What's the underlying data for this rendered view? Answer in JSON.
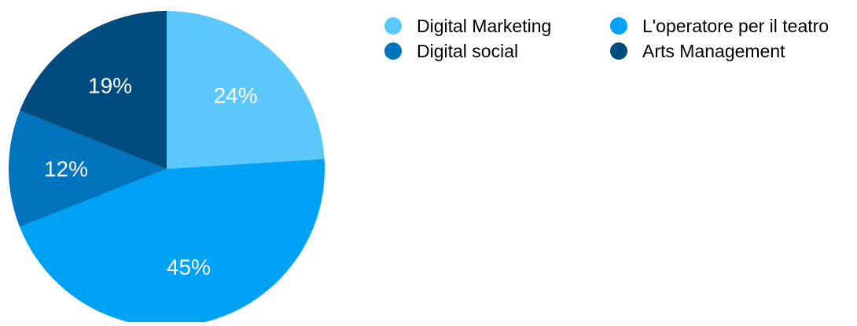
{
  "chart_data": {
    "type": "pie",
    "slices": [
      {
        "label": "Digital Marketing",
        "value": 24,
        "value_label": "24%",
        "color": "#5AC8FA"
      },
      {
        "label": "L'operatore per il teatro",
        "value": 45,
        "value_label": "45%",
        "color": "#00A2F5"
      },
      {
        "label": "Digital social",
        "value": 12,
        "value_label": "12%",
        "color": "#0075BD"
      },
      {
        "label": "Arts Management",
        "value": 19,
        "value_label": "19%",
        "color": "#004C7F"
      }
    ],
    "start_angle_deg": 0,
    "direction": "clockwise",
    "legend_position": "top-right",
    "legend_columns": 2,
    "label_color": "#ffffff"
  }
}
